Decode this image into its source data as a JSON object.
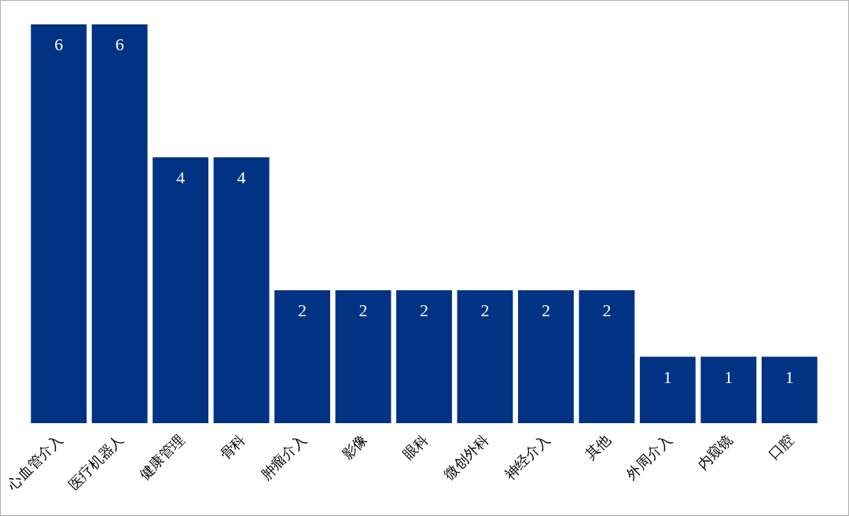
{
  "chart_data": {
    "type": "bar",
    "categories": [
      "心血管介入",
      "医疗机器人",
      "健康管理",
      "骨科",
      "肿瘤介入",
      "影像",
      "眼科",
      "微创外科",
      "神经介入",
      "其他",
      "外周介入",
      "内窥镜",
      "口腔"
    ],
    "values": [
      6,
      6,
      4,
      4,
      2,
      2,
      2,
      2,
      2,
      2,
      1,
      1,
      1
    ],
    "color": "#003383",
    "data_labels": true
  }
}
